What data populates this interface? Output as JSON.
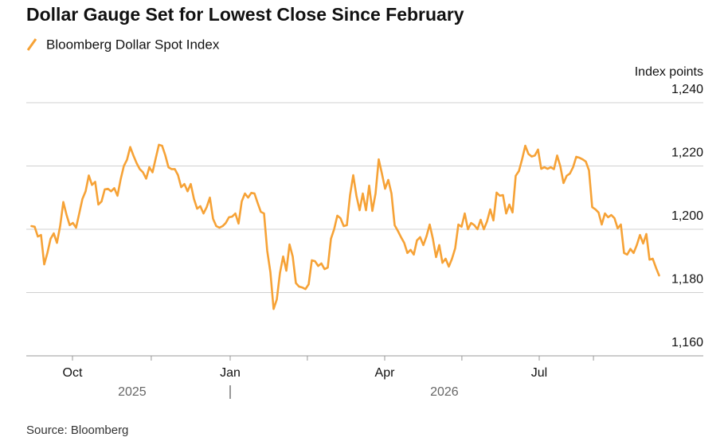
{
  "chart_data": {
    "type": "line",
    "title": "Dollar Gauge Set for Lowest Close Since February",
    "y_label": "Index points",
    "source": "Source: Bloomberg",
    "series": [
      {
        "name": "Bloomberg Dollar Spot Index",
        "color": "#f6a236",
        "values": [
          1201,
          1200.8,
          1197.7,
          1198.2,
          1188.9,
          1192.5,
          1197,
          1198.7,
          1195.7,
          1201,
          1208.6,
          1204.6,
          1201.3,
          1202,
          1200.5,
          1205,
          1209.6,
          1212,
          1217,
          1214,
          1215,
          1207.8,
          1208.8,
          1212.6,
          1212.8,
          1212,
          1213,
          1210.6,
          1215.8,
          1220,
          1222,
          1226,
          1223.3,
          1220.9,
          1219,
          1218,
          1216,
          1219.6,
          1218,
          1222.4,
          1226.7,
          1226.4,
          1223.4,
          1219.6,
          1219,
          1219,
          1217.1,
          1213.3,
          1214.3,
          1212,
          1214.3,
          1209.6,
          1206.5,
          1207.3,
          1205,
          1207,
          1210,
          1203.3,
          1201,
          1200.5,
          1201,
          1202,
          1203.8,
          1204,
          1205,
          1201.8,
          1208.8,
          1211.3,
          1210,
          1211.5,
          1211.3,
          1208.3,
          1205.5,
          1205,
          1193.2,
          1186.4,
          1174.8,
          1177.8,
          1186.2,
          1191.4,
          1186.9,
          1195.2,
          1191.4,
          1183,
          1181.9,
          1181.6,
          1181.1,
          1182.6,
          1190.2,
          1189.9,
          1188.4,
          1189.2,
          1187.4,
          1187.9,
          1197,
          1200,
          1204.3,
          1203.5,
          1201,
          1201.3,
          1210.8,
          1217.1,
          1210.6,
          1206,
          1211.3,
          1206,
          1213.8,
          1205.8,
          1211.3,
          1222.1,
          1217.6,
          1212.8,
          1215.6,
          1211.3,
          1201.3,
          1199.5,
          1197.5,
          1195.7,
          1192.5,
          1193.5,
          1192,
          1196.5,
          1197.5,
          1195,
          1197.8,
          1201.5,
          1197,
          1191.2,
          1195,
          1189.4,
          1190.7,
          1188.2,
          1190.7,
          1194,
          1201.5,
          1200.8,
          1205,
          1200,
          1202,
          1201.3,
          1200,
          1203,
          1200,
          1202.5,
          1206.3,
          1202.8,
          1211.6,
          1210.6,
          1210.8,
          1205,
          1207.8,
          1205.3,
          1216.9,
          1218.4,
          1222.1,
          1226.4,
          1223.8,
          1223,
          1223.3,
          1225.2,
          1219.1,
          1219.6,
          1219.1,
          1219.6,
          1219,
          1223.3,
          1219.9,
          1214.6,
          1216.9,
          1217.6,
          1219.6,
          1222.9,
          1222.6,
          1222.1,
          1221.4,
          1218.6,
          1207,
          1206.3,
          1205.3,
          1201.5,
          1205,
          1203.8,
          1204.5,
          1203.5,
          1200.3,
          1201.5,
          1192.5,
          1192,
          1193.8,
          1192.5,
          1195,
          1198.2,
          1195.5,
          1198.5,
          1190.4,
          1190.7,
          1187.9,
          1185.4
        ]
      }
    ],
    "xlim": [
      -1.625,
      210.875
    ],
    "xticks": [
      {
        "value": 12.875,
        "label": "Oct"
      },
      {
        "value": 62.375,
        "label": "Jan"
      },
      {
        "value": 110.875,
        "label": "Apr"
      },
      {
        "value": 159.375,
        "label": "Jul"
      }
    ],
    "minor_xticks": [
      37.6,
      86.6,
      135.1,
      176.4
    ],
    "year_labels": [
      {
        "value": 31.6,
        "label": "2025"
      },
      {
        "value": 129.6,
        "label": "2026"
      }
    ],
    "ylim": [
      1160,
      1240
    ],
    "yticks": [
      {
        "value": 1160,
        "label": "1,160"
      },
      {
        "value": 1180,
        "label": "1,180"
      },
      {
        "value": 1200,
        "label": "1,200"
      },
      {
        "value": 1220,
        "label": "1,220"
      },
      {
        "value": 1240,
        "label": "1,240"
      }
    ],
    "grid": true
  }
}
